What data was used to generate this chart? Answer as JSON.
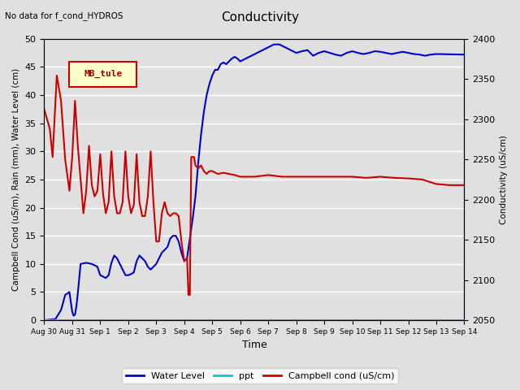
{
  "title": "Conductivity",
  "subtitle": "No data for f_cond_HYDROS",
  "xlabel": "Time",
  "ylabel_left": "Campbell Cond (uS/m), Rain (mm), Water Level (cm)",
  "ylabel_right": "Conductivity (uS/cm)",
  "ylim_left": [
    0,
    50
  ],
  "ylim_right": [
    2050,
    2400
  ],
  "yticks_left": [
    0,
    5,
    10,
    15,
    20,
    25,
    30,
    35,
    40,
    45,
    50
  ],
  "yticks_right": [
    2050,
    2100,
    2150,
    2200,
    2250,
    2300,
    2350,
    2400
  ],
  "xtick_positions": [
    0,
    1,
    2,
    3,
    4,
    5,
    6,
    7,
    8,
    9,
    10,
    11,
    12,
    13,
    14,
    15
  ],
  "xtick_labels": [
    "Aug 30",
    "Aug 31",
    "Sep 1",
    "Sep 2",
    "Sep 3",
    "Sep 4",
    "Sep 5",
    "Sep 6",
    "Sep 7",
    "Sep 8",
    "Sep 9",
    "Sep 10",
    "Sep 11",
    "Sep 12",
    "Sep 13",
    "Sep 14"
  ],
  "bg_color": "#e0e0e0",
  "plot_bg_color": "#e0e0e0",
  "legend_box_facecolor": "#ffffcc",
  "legend_box_label": "MB_tule",
  "water_level_color": "#0000cc",
  "ppt_color": "#00cccc",
  "campbell_color": "#cc0000",
  "grid_color": "#ffffff",
  "water_level_data": [
    [
      0,
      0.0
    ],
    [
      0.4,
      0.2
    ],
    [
      0.6,
      1.8
    ],
    [
      0.75,
      4.5
    ],
    [
      0.9,
      5.0
    ],
    [
      1.0,
      1.5
    ],
    [
      1.05,
      0.8
    ],
    [
      1.1,
      1.0
    ],
    [
      1.15,
      2.5
    ],
    [
      1.2,
      4.8
    ],
    [
      1.3,
      10.0
    ],
    [
      1.5,
      10.2
    ],
    [
      1.7,
      10.0
    ],
    [
      1.9,
      9.5
    ],
    [
      2.0,
      8.0
    ],
    [
      2.2,
      7.5
    ],
    [
      2.3,
      8.0
    ],
    [
      2.4,
      10.2
    ],
    [
      2.5,
      11.5
    ],
    [
      2.6,
      11.0
    ],
    [
      2.7,
      10.0
    ],
    [
      2.9,
      8.0
    ],
    [
      3.0,
      8.0
    ],
    [
      3.1,
      8.2
    ],
    [
      3.2,
      8.5
    ],
    [
      3.3,
      10.5
    ],
    [
      3.4,
      11.5
    ],
    [
      3.5,
      11.0
    ],
    [
      3.6,
      10.5
    ],
    [
      3.7,
      9.5
    ],
    [
      3.8,
      9.0
    ],
    [
      3.9,
      9.5
    ],
    [
      4.0,
      10.0
    ],
    [
      4.1,
      11.0
    ],
    [
      4.2,
      12.0
    ],
    [
      4.3,
      12.5
    ],
    [
      4.4,
      13.0
    ],
    [
      4.5,
      14.5
    ],
    [
      4.6,
      15.0
    ],
    [
      4.7,
      15.0
    ],
    [
      4.8,
      14.0
    ],
    [
      4.9,
      12.0
    ],
    [
      5.0,
      10.5
    ],
    [
      5.1,
      11.0
    ],
    [
      5.2,
      14.5
    ],
    [
      5.3,
      18.0
    ],
    [
      5.4,
      22.0
    ],
    [
      5.5,
      28.0
    ],
    [
      5.6,
      33.0
    ],
    [
      5.7,
      37.0
    ],
    [
      5.8,
      40.0
    ],
    [
      5.9,
      42.0
    ],
    [
      6.0,
      43.5
    ],
    [
      6.1,
      44.5
    ],
    [
      6.2,
      44.5
    ],
    [
      6.3,
      45.5
    ],
    [
      6.4,
      45.8
    ],
    [
      6.5,
      45.5
    ],
    [
      6.6,
      46.0
    ],
    [
      6.7,
      46.5
    ],
    [
      6.8,
      46.8
    ],
    [
      6.9,
      46.5
    ],
    [
      7.0,
      46.0
    ],
    [
      7.2,
      46.5
    ],
    [
      7.4,
      47.0
    ],
    [
      7.6,
      47.5
    ],
    [
      7.8,
      48.0
    ],
    [
      8.0,
      48.5
    ],
    [
      8.2,
      49.0
    ],
    [
      8.4,
      49.0
    ],
    [
      8.6,
      48.5
    ],
    [
      8.8,
      48.0
    ],
    [
      9.0,
      47.5
    ],
    [
      9.2,
      47.8
    ],
    [
      9.4,
      48.0
    ],
    [
      9.5,
      47.5
    ],
    [
      9.6,
      47.0
    ],
    [
      9.8,
      47.5
    ],
    [
      10.0,
      47.8
    ],
    [
      10.2,
      47.5
    ],
    [
      10.4,
      47.2
    ],
    [
      10.6,
      47.0
    ],
    [
      10.8,
      47.5
    ],
    [
      11.0,
      47.8
    ],
    [
      11.2,
      47.5
    ],
    [
      11.4,
      47.3
    ],
    [
      11.6,
      47.5
    ],
    [
      11.8,
      47.8
    ],
    [
      12.0,
      47.7
    ],
    [
      12.2,
      47.5
    ],
    [
      12.4,
      47.3
    ],
    [
      12.6,
      47.5
    ],
    [
      12.8,
      47.7
    ],
    [
      13.0,
      47.5
    ],
    [
      13.2,
      47.3
    ],
    [
      13.4,
      47.2
    ],
    [
      13.6,
      47.0
    ],
    [
      13.8,
      47.2
    ],
    [
      14.0,
      47.3
    ],
    [
      15.0,
      47.2
    ]
  ],
  "ppt_data": [
    [
      0,
      0.0
    ],
    [
      15.0,
      0.0
    ]
  ],
  "campbell_data": [
    [
      0,
      37.5
    ],
    [
      0.2,
      34.0
    ],
    [
      0.3,
      29.0
    ],
    [
      0.45,
      43.5
    ],
    [
      0.6,
      39.0
    ],
    [
      0.75,
      28.5
    ],
    [
      0.9,
      23.0
    ],
    [
      1.0,
      29.0
    ],
    [
      1.1,
      39.0
    ],
    [
      1.2,
      31.0
    ],
    [
      1.3,
      25.0
    ],
    [
      1.4,
      19.0
    ],
    [
      1.5,
      23.0
    ],
    [
      1.6,
      31.0
    ],
    [
      1.7,
      24.0
    ],
    [
      1.8,
      22.0
    ],
    [
      1.9,
      23.0
    ],
    [
      2.0,
      29.5
    ],
    [
      2.1,
      22.5
    ],
    [
      2.2,
      19.0
    ],
    [
      2.3,
      21.0
    ],
    [
      2.4,
      30.0
    ],
    [
      2.5,
      22.0
    ],
    [
      2.6,
      19.0
    ],
    [
      2.7,
      19.0
    ],
    [
      2.8,
      21.0
    ],
    [
      2.9,
      30.0
    ],
    [
      3.0,
      22.0
    ],
    [
      3.1,
      19.0
    ],
    [
      3.2,
      20.5
    ],
    [
      3.3,
      29.5
    ],
    [
      3.4,
      21.0
    ],
    [
      3.5,
      18.5
    ],
    [
      3.6,
      18.5
    ],
    [
      3.7,
      22.0
    ],
    [
      3.8,
      30.0
    ],
    [
      3.9,
      21.0
    ],
    [
      4.0,
      14.0
    ],
    [
      4.1,
      14.0
    ],
    [
      4.2,
      19.0
    ],
    [
      4.3,
      21.0
    ],
    [
      4.4,
      19.0
    ],
    [
      4.5,
      18.5
    ],
    [
      4.6,
      19.0
    ],
    [
      4.7,
      19.0
    ],
    [
      4.8,
      18.5
    ],
    [
      4.9,
      14.0
    ],
    [
      5.0,
      10.5
    ],
    [
      5.1,
      11.0
    ],
    [
      5.15,
      4.5
    ],
    [
      5.2,
      4.5
    ],
    [
      5.25,
      29.0
    ],
    [
      5.3,
      29.0
    ],
    [
      5.35,
      29.0
    ],
    [
      5.4,
      27.5
    ],
    [
      5.5,
      27.0
    ],
    [
      5.6,
      27.5
    ],
    [
      5.7,
      26.5
    ],
    [
      5.8,
      26.0
    ],
    [
      5.9,
      26.5
    ],
    [
      6.0,
      26.5
    ],
    [
      6.2,
      26.0
    ],
    [
      6.4,
      26.2
    ],
    [
      6.6,
      26.0
    ],
    [
      6.8,
      25.8
    ],
    [
      7.0,
      25.5
    ],
    [
      7.5,
      25.5
    ],
    [
      8.0,
      25.8
    ],
    [
      8.5,
      25.5
    ],
    [
      9.0,
      25.5
    ],
    [
      9.5,
      25.5
    ],
    [
      10.0,
      25.5
    ],
    [
      10.5,
      25.5
    ],
    [
      11.0,
      25.5
    ],
    [
      11.5,
      25.3
    ],
    [
      12.0,
      25.5
    ],
    [
      12.5,
      25.3
    ],
    [
      13.0,
      25.2
    ],
    [
      13.5,
      25.0
    ],
    [
      14.0,
      24.2
    ],
    [
      14.5,
      24.0
    ],
    [
      15.0,
      24.0
    ]
  ]
}
